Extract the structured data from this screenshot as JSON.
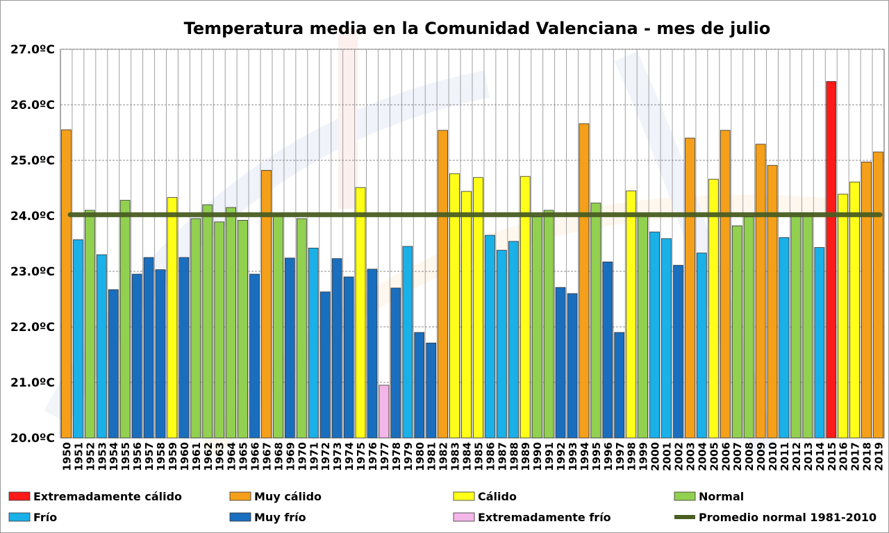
{
  "chart_data": {
    "type": "bar",
    "title": "Temperatura media en la Comunidad Valenciana - mes de julio",
    "xlabel": "",
    "ylabel": "",
    "ylim": [
      20.0,
      27.0
    ],
    "yticks": [
      "20.0ºC",
      "21.0ºC",
      "22.0ºC",
      "23.0ºC",
      "24.0ºC",
      "25.0ºC",
      "26.0ºC",
      "27.0ºC"
    ],
    "grid": true,
    "legend_position": "bottom",
    "categories": [
      "1950",
      "1951",
      "1952",
      "1953",
      "1954",
      "1955",
      "1956",
      "1957",
      "1958",
      "1959",
      "1960",
      "1961",
      "1962",
      "1963",
      "1964",
      "1965",
      "1966",
      "1967",
      "1968",
      "1969",
      "1970",
      "1971",
      "1972",
      "1973",
      "1974",
      "1975",
      "1976",
      "1977",
      "1978",
      "1979",
      "1980",
      "1981",
      "1982",
      "1983",
      "1984",
      "1985",
      "1986",
      "1987",
      "1988",
      "1989",
      "1990",
      "1991",
      "1992",
      "1993",
      "1994",
      "1995",
      "1996",
      "1997",
      "1998",
      "1999",
      "2000",
      "2001",
      "2002",
      "2003",
      "2004",
      "2005",
      "2006",
      "2007",
      "2008",
      "2009",
      "2010",
      "2011",
      "2012",
      "2013",
      "2014",
      "2015",
      "2016",
      "2017",
      "2018",
      "2019"
    ],
    "values": [
      25.55,
      23.57,
      24.1,
      23.3,
      22.67,
      24.28,
      22.95,
      23.25,
      23.03,
      24.33,
      23.25,
      23.95,
      24.2,
      23.89,
      24.15,
      23.92,
      22.95,
      24.82,
      24.03,
      23.24,
      23.95,
      23.42,
      22.63,
      23.23,
      22.9,
      24.51,
      23.04,
      20.95,
      22.7,
      23.45,
      21.9,
      21.71,
      25.54,
      24.76,
      24.44,
      24.69,
      23.65,
      23.38,
      23.54,
      24.71,
      23.98,
      24.1,
      22.71,
      22.6,
      25.66,
      24.23,
      23.17,
      21.9,
      24.45,
      24.02,
      23.71,
      23.59,
      23.11,
      25.4,
      23.33,
      24.66,
      25.54,
      23.82,
      23.98,
      25.29,
      24.91,
      23.61,
      24.05,
      24.05,
      23.43,
      26.42,
      24.39,
      24.61,
      24.97,
      25.15
    ],
    "classes": [
      "mc",
      "f",
      "n",
      "f",
      "mf",
      "n",
      "mf",
      "mf",
      "mf",
      "c",
      "mf",
      "n",
      "n",
      "n",
      "n",
      "n",
      "mf",
      "mc",
      "n",
      "mf",
      "n",
      "f",
      "mf",
      "mf",
      "mf",
      "c",
      "mf",
      "ef",
      "mf",
      "f",
      "mf",
      "mf",
      "mc",
      "c",
      "c",
      "c",
      "f",
      "f",
      "f",
      "c",
      "n",
      "n",
      "mf",
      "mf",
      "mc",
      "n",
      "mf",
      "mf",
      "c",
      "n",
      "f",
      "f",
      "mf",
      "mc",
      "f",
      "c",
      "mc",
      "n",
      "n",
      "mc",
      "mc",
      "f",
      "n",
      "n",
      "f",
      "ec",
      "c",
      "c",
      "mc",
      "mc"
    ],
    "reference_line": {
      "name": "Promedio normal 1981-2010",
      "value": 24.02,
      "color": "#4a5e23"
    },
    "legend": [
      {
        "key": "ec",
        "label": "Extremadamente cálido",
        "color": "#ff1a1a"
      },
      {
        "key": "mc",
        "label": "Muy cálido",
        "color": "#f5a01a"
      },
      {
        "key": "c",
        "label": "Cálido",
        "color": "#ffff1a"
      },
      {
        "key": "n",
        "label": "Normal",
        "color": "#92d050"
      },
      {
        "key": "f",
        "label": "Frío",
        "color": "#1ab0e8"
      },
      {
        "key": "mf",
        "label": "Muy frío",
        "color": "#1a6ebe"
      },
      {
        "key": "ef",
        "label": "Extremadamente frío",
        "color": "#f4b6e8"
      },
      {
        "key": "avg",
        "label": "Promedio normal 1981-2010",
        "color": "#4a5e23"
      }
    ]
  }
}
